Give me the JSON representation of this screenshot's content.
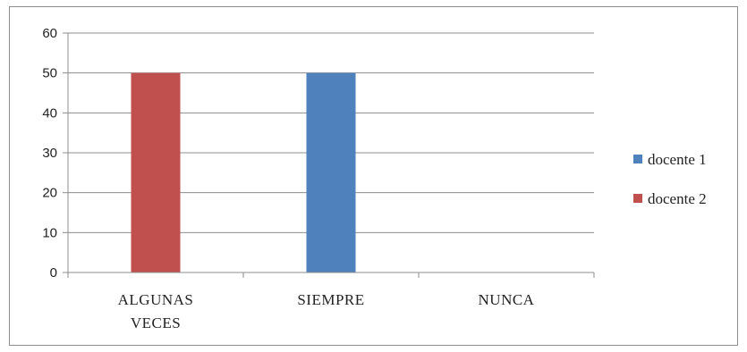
{
  "chart_data": {
    "type": "bar",
    "categories": [
      [
        "ALGUNAS",
        "VECES"
      ],
      [
        "SIEMPRE"
      ],
      [
        "NUNCA"
      ]
    ],
    "series": [
      {
        "name": "docente 1",
        "color": "#4f81bd",
        "values": [
          0,
          50,
          0
        ]
      },
      {
        "name": "docente 2",
        "color": "#c0504d",
        "values": [
          50,
          0,
          0
        ]
      }
    ],
    "title": "",
    "xlabel": "",
    "ylabel": "",
    "ylim": [
      0,
      60
    ],
    "yticks": [
      0,
      10,
      20,
      30,
      40,
      50,
      60
    ],
    "grid": true,
    "legend_position": "right"
  }
}
